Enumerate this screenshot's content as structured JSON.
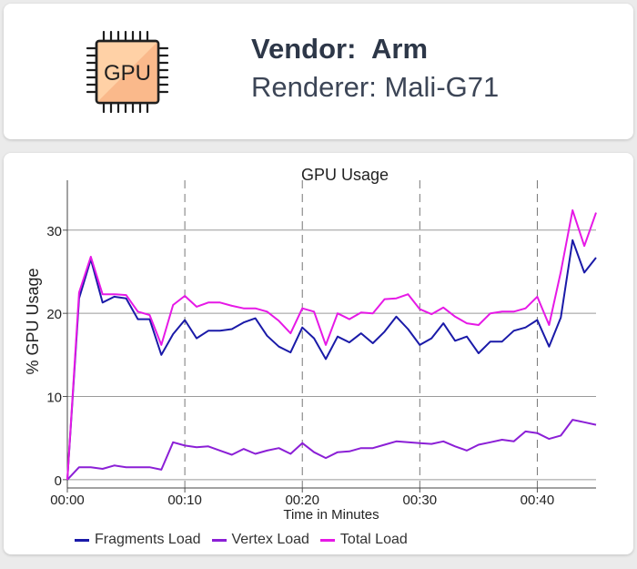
{
  "vendor": {
    "label": "Vendor:",
    "value": "Arm",
    "renderer_label": "Renderer:",
    "renderer_value": "Mali-G71",
    "chip_text": "GPU",
    "icon": "gpu-chip-icon"
  },
  "colors": {
    "fragments": "#1a1aa8",
    "vertex": "#8b1fd6",
    "total": "#e619e6"
  },
  "chart_data": {
    "type": "line",
    "title": "GPU Usage",
    "xlabel": "Time in Minutes",
    "ylabel": "% GPU Usage",
    "xlim": [
      0,
      45
    ],
    "ylim": [
      -1,
      36
    ],
    "x_ticks": [
      0,
      10,
      20,
      30,
      40
    ],
    "x_tick_labels": [
      "00:00",
      "00:10",
      "00:20",
      "00:30",
      "00:40"
    ],
    "y_ticks": [
      0,
      10,
      20,
      30
    ],
    "y_tick_labels": [
      "0",
      "10",
      "20",
      "30"
    ],
    "grid": "horizontal solid, vertical dashed",
    "legend_position": "bottom",
    "x": [
      0,
      1,
      2,
      3,
      4,
      5,
      6,
      7,
      8,
      9,
      10,
      11,
      12,
      13,
      14,
      15,
      16,
      17,
      18,
      19,
      20,
      21,
      22,
      23,
      24,
      25,
      26,
      27,
      28,
      29,
      30,
      31,
      32,
      33,
      34,
      35,
      36,
      37,
      38,
      39,
      40,
      41,
      42,
      43,
      44,
      45
    ],
    "series": [
      {
        "name": "Fragments Load",
        "values": [
          0,
          21.8,
          26.5,
          21.3,
          22.0,
          21.8,
          19.3,
          19.3,
          15.0,
          17.5,
          19.2,
          17.0,
          17.9,
          17.9,
          18.1,
          18.9,
          19.4,
          17.3,
          16.0,
          15.3,
          18.3,
          17.0,
          14.5,
          17.2,
          16.5,
          17.6,
          16.4,
          17.8,
          19.6,
          18.1,
          16.2,
          17.0,
          18.8,
          16.7,
          17.2,
          15.2,
          16.6,
          16.6,
          17.9,
          18.3,
          19.2,
          16.0,
          19.5,
          28.8,
          24.9,
          26.7
        ]
      },
      {
        "name": "Vertex Load",
        "values": [
          0,
          1.5,
          1.5,
          1.3,
          1.7,
          1.5,
          1.5,
          1.5,
          1.2,
          4.5,
          4.1,
          3.9,
          4.0,
          3.5,
          3.0,
          3.7,
          3.1,
          3.5,
          3.8,
          3.1,
          4.4,
          3.3,
          2.6,
          3.3,
          3.4,
          3.8,
          3.8,
          4.2,
          4.6,
          4.5,
          4.4,
          4.3,
          4.6,
          4.0,
          3.5,
          4.2,
          4.5,
          4.8,
          4.6,
          5.8,
          5.6,
          4.9,
          5.3,
          7.2,
          6.9,
          6.6
        ]
      },
      {
        "name": "Total Load",
        "values": [
          0,
          22.5,
          26.8,
          22.3,
          22.3,
          22.2,
          20.2,
          19.8,
          16.2,
          21.0,
          22.1,
          20.8,
          21.3,
          21.3,
          20.9,
          20.6,
          20.6,
          20.2,
          19.1,
          17.6,
          20.6,
          20.2,
          16.2,
          20.0,
          19.3,
          20.1,
          20.0,
          21.7,
          21.8,
          22.3,
          20.5,
          19.9,
          20.7,
          19.6,
          18.8,
          18.6,
          20.0,
          20.2,
          20.2,
          20.6,
          22.0,
          18.6,
          25.0,
          32.4,
          28.1,
          32.1
        ]
      }
    ]
  }
}
